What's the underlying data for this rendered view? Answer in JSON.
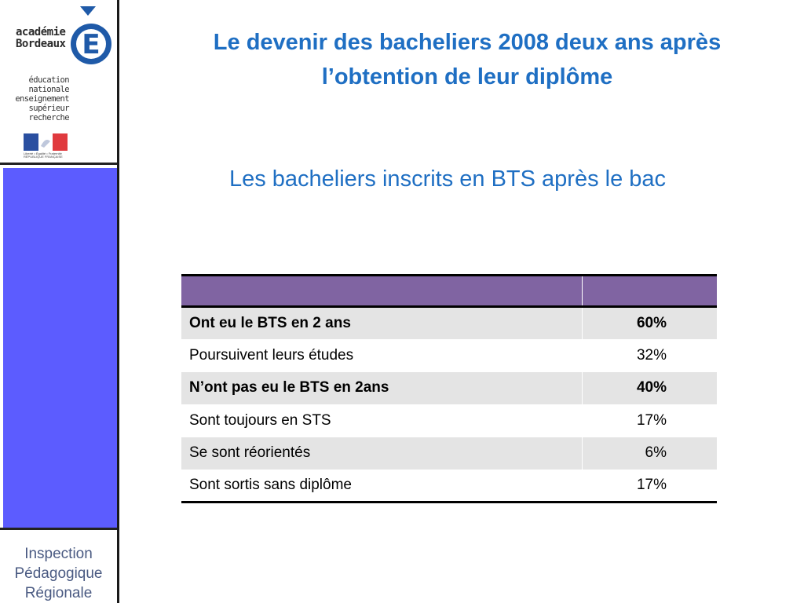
{
  "sidebar": {
    "logo": {
      "line1": "académie",
      "line2": "Bordeaux",
      "letter": "É",
      "sub": [
        "éducation",
        "nationale",
        "enseignement",
        "supérieur",
        "recherche"
      ],
      "motto": "Liberté • Égalité • Fraternité RÉPUBLIQUE FRANÇAISE"
    },
    "footer": [
      "Inspection",
      "Pédagogique",
      "Régionale"
    ],
    "colors": {
      "panel": "#5c5cff",
      "footer_text": "#4a5a82"
    }
  },
  "header": {
    "title_line1": "Le devenir des bacheliers 2008 deux ans après",
    "title_line2": "l’obtention de leur diplôme",
    "subtitle": "Les bacheliers inscrits en BTS après le bac"
  },
  "table": {
    "header_color": "#8064a2",
    "headers": [
      "",
      ""
    ],
    "rows": [
      {
        "label": "Ont eu le BTS en 2 ans",
        "value": "60%",
        "bold": true,
        "shaded": true
      },
      {
        "label": "Poursuivent leurs études",
        "value": "32%",
        "bold": false,
        "shaded": false
      },
      {
        "label": "N’ont pas eu le BTS en 2ans",
        "value": "40%",
        "bold": true,
        "shaded": true
      },
      {
        "label": "Sont toujours en STS",
        "value": "17%",
        "bold": false,
        "shaded": false
      },
      {
        "label": "Se sont réorientés",
        "value": "6%",
        "bold": false,
        "shaded": true
      },
      {
        "label": "Sont sortis sans diplôme",
        "value": "17%",
        "bold": false,
        "shaded": false
      }
    ]
  },
  "colors": {
    "title": "#1f6fc3"
  }
}
